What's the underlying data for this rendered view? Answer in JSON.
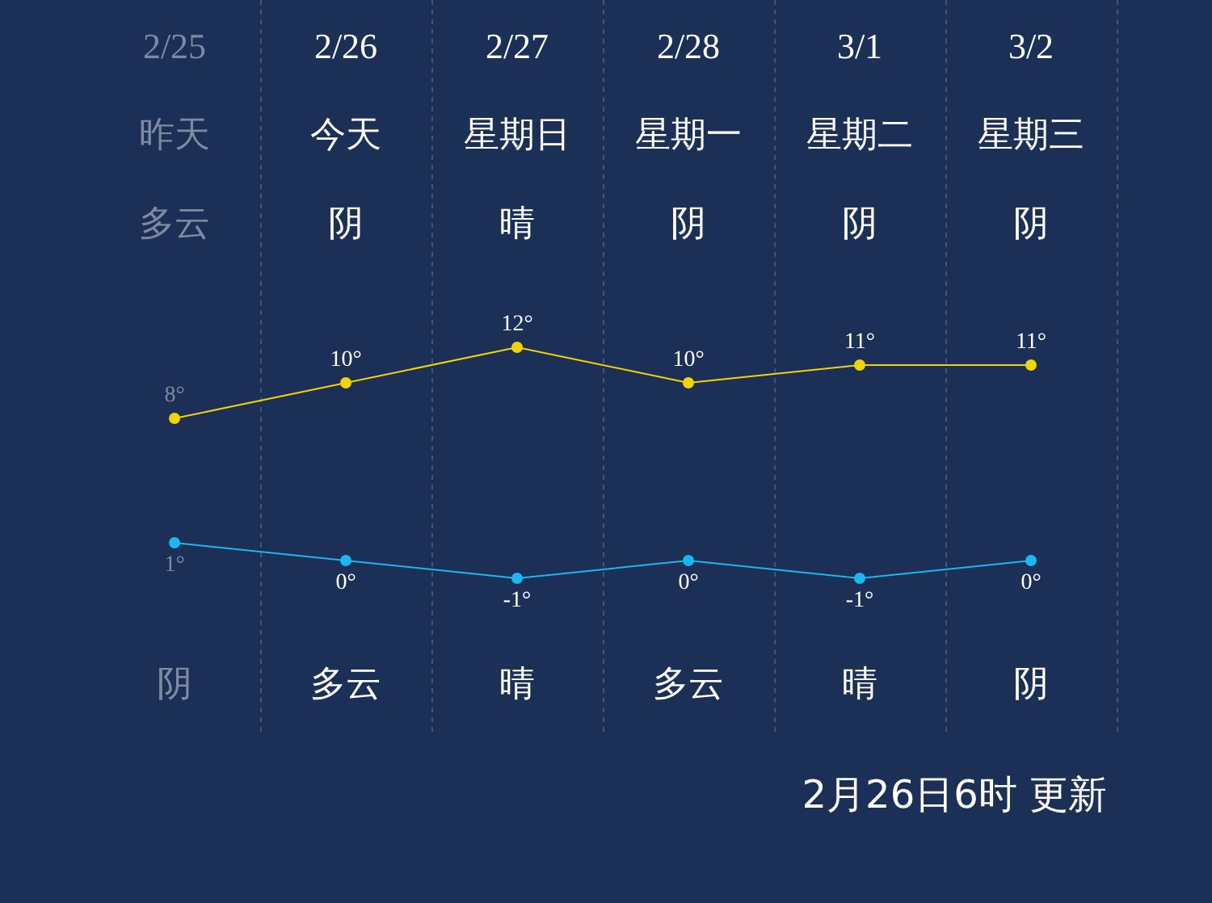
{
  "chart_data": {
    "type": "line",
    "categories": [
      "2/25",
      "2/26",
      "2/27",
      "2/28",
      "3/1",
      "3/2"
    ],
    "series": [
      {
        "color": "#f2d500",
        "values": [
          8,
          10,
          12,
          10,
          11,
          11
        ],
        "value_labels": [
          "8°",
          "10°",
          "12°",
          "10°",
          "11°",
          "11°"
        ]
      },
      {
        "color": "#1bb8f0",
        "values": [
          1,
          0,
          -1,
          0,
          -1,
          0
        ],
        "value_labels": [
          "1°",
          "0°",
          "-1°",
          "0°",
          "-1°",
          "0°"
        ]
      }
    ],
    "annotations": [
      "昨天",
      "今天",
      "星期日",
      "星期一",
      "星期二",
      "星期三",
      "多云",
      "阴",
      "晴",
      "阴",
      "阴",
      "阴",
      "阴",
      "多云",
      "晴",
      "多云",
      "晴",
      "阴",
      "2月26日6时 更新"
    ],
    "grid": "x",
    "legend": false,
    "marker": "circle",
    "line_style": "solid"
  }
}
